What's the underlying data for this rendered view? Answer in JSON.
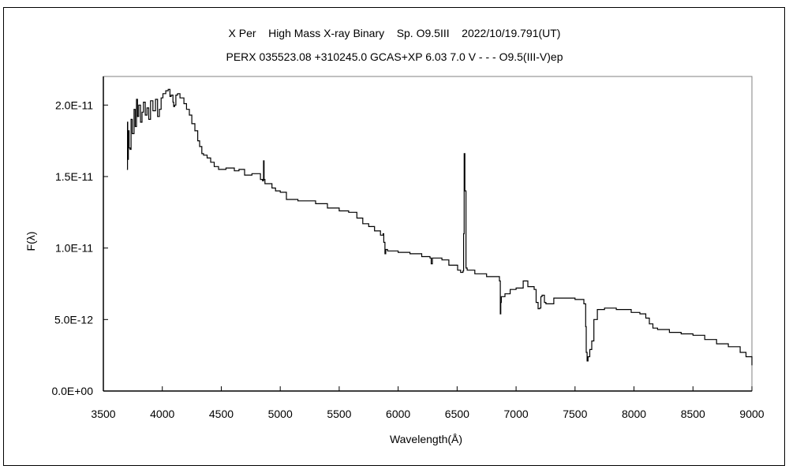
{
  "chart_data": {
    "type": "line",
    "title": "X Per    High Mass X-ray Binary    Sp. O9.5III    2022/10/19.791(UT)",
    "subtitle": "PERX 035523.08 +310245.0 GCAS+XP 6.03 7.0 V - - - O9.5(III-V)ep",
    "xlabel": "Wavelength(Å)",
    "ylabel": "F(λ)",
    "xlim": [
      3500,
      9000
    ],
    "ylim": [
      0,
      2.2e-11
    ],
    "grid": false,
    "legend": "none",
    "x_ticks": [
      3500,
      4000,
      4500,
      5000,
      5500,
      6000,
      6500,
      7000,
      7500,
      8000,
      8500,
      9000
    ],
    "x_tick_labels": [
      "3500",
      "4000",
      "4500",
      "5000",
      "5500",
      "6000",
      "6500",
      "7000",
      "7500",
      "8000",
      "8500",
      "9000"
    ],
    "y_ticks": [
      0,
      5e-12,
      1e-11,
      1.5e-11,
      2e-11
    ],
    "y_tick_labels": [
      "0.0E+00",
      "5.0E-12",
      "1.0E-11",
      "1.5E-11",
      "2.0E-11"
    ],
    "series": [
      {
        "name": "X Per spectrum",
        "color": "#000000",
        "x": [
          3700,
          3705,
          3707,
          3712,
          3718,
          3727,
          3735,
          3745,
          3760,
          3770,
          3781,
          3790,
          3800,
          3815,
          3828,
          3840,
          3855,
          3870,
          3885,
          3900,
          3920,
          3942,
          3960,
          3975,
          3990,
          4005,
          4029,
          4050,
          4065,
          4075,
          4090,
          4096,
          4105,
          4115,
          4129,
          4150,
          4183,
          4205,
          4229,
          4250,
          4276,
          4300,
          4316,
          4335,
          4350,
          4380,
          4410,
          4440,
          4477,
          4540,
          4611,
          4650,
          4698,
          4760,
          4832,
          4850,
          4858,
          4863,
          4870,
          4885,
          4930,
          4960,
          5000,
          5052,
          5150,
          5300,
          5400,
          5500,
          5580,
          5650,
          5700,
          5750,
          5800,
          5850,
          5866,
          5872,
          5878,
          5888,
          5895,
          5910,
          6000,
          6100,
          6200,
          6270,
          6280,
          6290,
          6300,
          6371,
          6430,
          6504,
          6530,
          6550,
          6555,
          6560,
          6566,
          6575,
          6585,
          6650,
          6750,
          6859,
          6866,
          6870,
          6875,
          6885,
          6906,
          6950,
          7000,
          7060,
          7100,
          7153,
          7170,
          7187,
          7200,
          7210,
          7220,
          7240,
          7253,
          7320,
          7400,
          7500,
          7575,
          7590,
          7595,
          7602,
          7610,
          7625,
          7642,
          7660,
          7689,
          7750,
          7850,
          7976,
          8050,
          8100,
          8130,
          8160,
          8200,
          8300,
          8400,
          8500,
          8600,
          8700,
          8800,
          8900,
          8950,
          9000
        ],
        "y": [
          1.55e-11,
          1.88e-11,
          1.62e-11,
          1.82e-11,
          1.7e-11,
          1.69e-11,
          1.9e-11,
          1.8e-11,
          1.97e-11,
          1.85e-11,
          2.04e-11,
          1.92e-11,
          2e-11,
          1.88e-11,
          1.95e-11,
          2.02e-11,
          1.93e-11,
          1.98e-11,
          1.9e-11,
          2.03e-11,
          1.96e-11,
          2.04e-11,
          1.92e-11,
          1.97e-11,
          2.05e-11,
          2.08e-11,
          2.1e-11,
          2.11e-11,
          2.06e-11,
          2.07e-11,
          2.02e-11,
          1.99e-11,
          2e-11,
          2.07e-11,
          2.08e-11,
          2.05e-11,
          2.01e-11,
          1.97e-11,
          1.93e-11,
          1.87e-11,
          1.82e-11,
          1.75e-11,
          1.71e-11,
          1.66e-11,
          1.65e-11,
          1.63e-11,
          1.6e-11,
          1.57e-11,
          1.55e-11,
          1.56e-11,
          1.54e-11,
          1.55e-11,
          1.51e-11,
          1.52e-11,
          1.48e-11,
          1.47e-11,
          1.61e-11,
          1.48e-11,
          1.45e-11,
          1.45e-11,
          1.42e-11,
          1.4e-11,
          1.39e-11,
          1.34e-11,
          1.33e-11,
          1.31e-11,
          1.28e-11,
          1.26e-11,
          1.25e-11,
          1.21e-11,
          1.17e-11,
          1.15e-11,
          1.12e-11,
          1.09e-11,
          1.09e-11,
          1.1e-11,
          1.04e-11,
          9.6e-12,
          9.9e-12,
          9.8e-12,
          9.7e-12,
          9.6e-12,
          9.4e-12,
          9.3e-12,
          8.9e-12,
          9.3e-12,
          9.3e-12,
          9.17e-12,
          8.8e-12,
          8.45e-12,
          8.3e-12,
          8.4e-12,
          1.1e-11,
          1.66e-11,
          1.4e-11,
          8.6e-12,
          8.45e-12,
          8.2e-12,
          8e-12,
          7.7e-12,
          5.4e-12,
          6.2e-12,
          6.6e-12,
          6.6e-12,
          6.8e-12,
          7.1e-12,
          7.2e-12,
          7.7e-12,
          7.3e-12,
          7.1e-12,
          6.2e-12,
          5.75e-12,
          5.8e-12,
          6.6e-12,
          6.7e-12,
          6.2e-12,
          6.1e-12,
          6.5e-12,
          6.5e-12,
          6.4e-12,
          6.1e-12,
          4.5e-12,
          2.7e-12,
          2.1e-12,
          2.4e-12,
          2.9e-12,
          3.5e-12,
          5e-12,
          5.7e-12,
          5.8e-12,
          5.7e-12,
          5.5e-12,
          5.4e-12,
          5.1e-12,
          4.7e-12,
          4.4e-12,
          4.3e-12,
          4.1e-12,
          4e-12,
          3.9e-12,
          3.6e-12,
          3.3e-12,
          3.1e-12,
          2.7e-12,
          2.4e-12,
          1.8e-12
        ]
      }
    ]
  }
}
